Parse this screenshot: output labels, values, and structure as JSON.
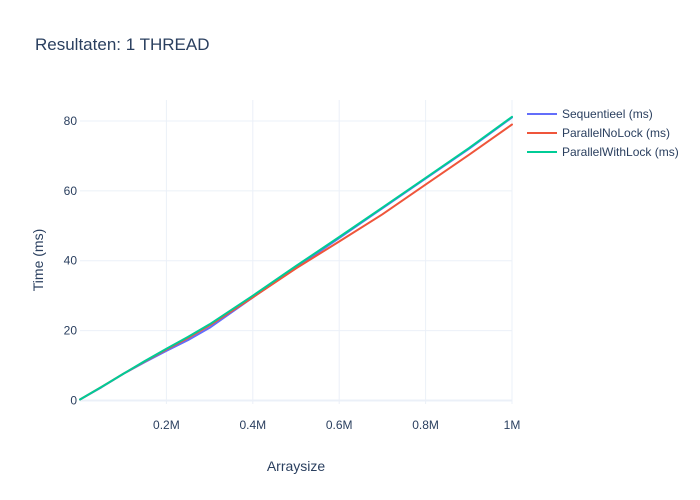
{
  "chart_data": {
    "type": "line",
    "title": "Resultaten: 1 THREAD",
    "xlabel": "Arraysize",
    "ylabel": "Time (ms)",
    "xlim": [
      0,
      1000000
    ],
    "ylim": [
      -1,
      86
    ],
    "xticks": [
      {
        "value": 200000,
        "label": "0.2M"
      },
      {
        "value": 400000,
        "label": "0.4M"
      },
      {
        "value": 600000,
        "label": "0.6M"
      },
      {
        "value": 800000,
        "label": "0.8M"
      },
      {
        "value": 1000000,
        "label": "1M"
      }
    ],
    "yticks": [
      {
        "value": 0,
        "label": "0"
      },
      {
        "value": 20,
        "label": "20"
      },
      {
        "value": 40,
        "label": "40"
      },
      {
        "value": 60,
        "label": "60"
      },
      {
        "value": 80,
        "label": "80"
      }
    ],
    "grid": true,
    "legend_position": "top-right",
    "series": [
      {
        "name": "Sequentieel (ms)",
        "color": "#636efa",
        "x": [
          0,
          50000,
          100000,
          150000,
          200000,
          250000,
          300000,
          400000,
          500000,
          600000,
          700000,
          800000,
          900000,
          1000000
        ],
        "y": [
          0.3,
          3.8,
          7.6,
          11.0,
          14.2,
          17.3,
          20.8,
          29.5,
          38.0,
          46.5,
          55.0,
          63.5,
          72.0,
          81.0
        ]
      },
      {
        "name": "ParallelNoLock (ms)",
        "color": "#ef553b",
        "x": [
          0,
          50000,
          100000,
          150000,
          200000,
          250000,
          300000,
          400000,
          500000,
          600000,
          700000,
          800000,
          900000,
          1000000
        ],
        "y": [
          0.3,
          3.9,
          7.6,
          11.2,
          14.6,
          17.9,
          21.5,
          29.5,
          37.8,
          45.5,
          53.3,
          61.8,
          70.3,
          79.0
        ]
      },
      {
        "name": "ParallelWithLock (ms)",
        "color": "#00cc96",
        "x": [
          0,
          50000,
          100000,
          150000,
          200000,
          250000,
          300000,
          400000,
          500000,
          600000,
          700000,
          800000,
          900000,
          1000000
        ],
        "y": [
          0.3,
          3.9,
          7.6,
          11.3,
          14.8,
          18.2,
          21.8,
          30.0,
          38.5,
          46.8,
          55.2,
          63.7,
          72.2,
          81.2
        ]
      }
    ]
  }
}
